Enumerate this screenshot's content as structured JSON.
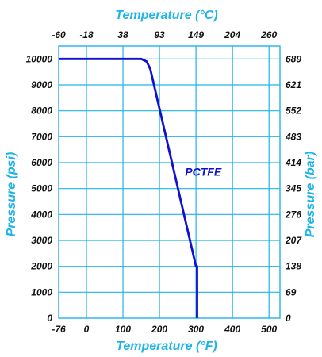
{
  "chart_data": {
    "type": "line",
    "title": "",
    "top_axis": {
      "label": "Temperature (°C)",
      "ticks": [
        {
          "label": "-60",
          "f": -76
        },
        {
          "label": "-18",
          "f": 0
        },
        {
          "label": "38",
          "f": 100
        },
        {
          "label": "93",
          "f": 200
        },
        {
          "label": "149",
          "f": 300
        },
        {
          "label": "204",
          "f": 400
        },
        {
          "label": "260",
          "f": 500
        }
      ]
    },
    "bottom_axis": {
      "label": "Temperature (°F)",
      "xlim": [
        -76,
        530
      ],
      "ticks": [
        {
          "label": "-76",
          "f": -76
        },
        {
          "label": "0",
          "f": 0
        },
        {
          "label": "100",
          "f": 100
        },
        {
          "label": "200",
          "f": 200
        },
        {
          "label": "300",
          "f": 300
        },
        {
          "label": "400",
          "f": 400
        },
        {
          "label": "500",
          "f": 500
        }
      ]
    },
    "left_axis": {
      "label": "Pressure (psi)",
      "ylim": [
        0,
        10500
      ],
      "ticks": [
        {
          "label": "0",
          "v": 0
        },
        {
          "label": "1000",
          "v": 1000
        },
        {
          "label": "2000",
          "v": 2000
        },
        {
          "label": "3000",
          "v": 3000
        },
        {
          "label": "4000",
          "v": 4000
        },
        {
          "label": "5000",
          "v": 5000
        },
        {
          "label": "6000",
          "v": 6000
        },
        {
          "label": "7000",
          "v": 7000
        },
        {
          "label": "8000",
          "v": 8000
        },
        {
          "label": "9000",
          "v": 9000
        },
        {
          "label": "10000",
          "v": 10000
        }
      ]
    },
    "right_axis": {
      "label": "Pressure (bar)",
      "ticks": [
        {
          "label": "0",
          "v": 0
        },
        {
          "label": "69",
          "v": 1000
        },
        {
          "label": "138",
          "v": 2000
        },
        {
          "label": "207",
          "v": 3000
        },
        {
          "label": "276",
          "v": 4000
        },
        {
          "label": "345",
          "v": 5000
        },
        {
          "label": "414",
          "v": 6000
        },
        {
          "label": "483",
          "v": 7000
        },
        {
          "label": "552",
          "v": 8000
        },
        {
          "label": "621",
          "v": 9000
        },
        {
          "label": "689",
          "v": 10000
        }
      ]
    },
    "grid": true,
    "series": [
      {
        "name": "PCTFE",
        "label_at": {
          "x": 270,
          "y": 5500
        },
        "x": [
          -76,
          150,
          165,
          175,
          300,
          303,
          303
        ],
        "y": [
          10000,
          10000,
          9900,
          9600,
          2000,
          2000,
          0
        ]
      }
    ],
    "colors": {
      "axis_title": "#1fb4e8",
      "grid": "#1fb4e8",
      "line": "#1010d0",
      "tick_text": "#111111"
    }
  }
}
